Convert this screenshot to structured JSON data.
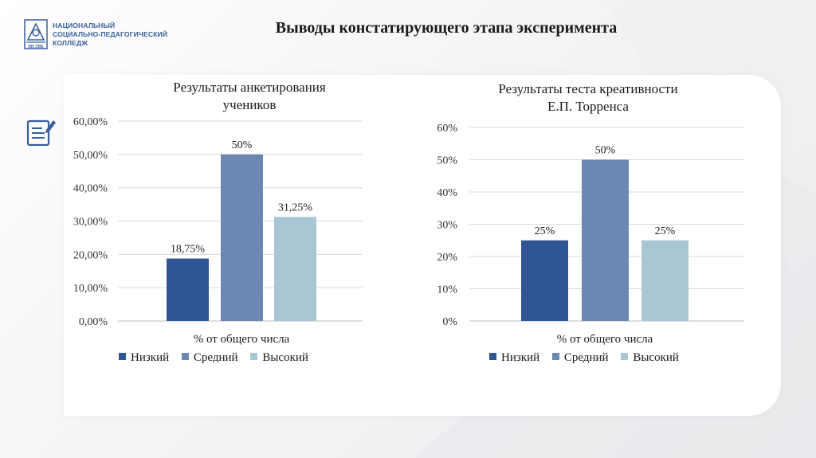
{
  "header": {
    "logo_lines": [
      "НАЦИОНАЛЬНЫЙ",
      "СОЦИАЛЬНО-ПЕДАГОГИЧЕСКИЙ",
      "КОЛЛЕДЖ"
    ],
    "logo_mark_text": "НСПК",
    "title": "Выводы констатирующего этапа эксперимента"
  },
  "colors": {
    "low": "#2f5597",
    "medium": "#6d87b3",
    "high": "#a9c6d4"
  },
  "chart_data": [
    {
      "type": "bar",
      "title": "Результаты анкетирования учеников",
      "title_lines": [
        "Результаты анкетирования",
        "учеников"
      ],
      "categories": [
        "% от общего числа"
      ],
      "series": [
        {
          "name": "Низкий",
          "values": [
            18.75
          ]
        },
        {
          "name": "Средний",
          "values": [
            50
          ]
        },
        {
          "name": "Высокий",
          "values": [
            31.25
          ]
        }
      ],
      "data_labels": [
        "18,75%",
        "50%",
        "31,25%"
      ],
      "ylim": [
        0,
        60
      ],
      "yticks": [
        "0,00%",
        "10,00%",
        "20,00%",
        "30,00%",
        "40,00%",
        "50,00%",
        "60,00%"
      ],
      "xlabel": "% от общего числа",
      "ylabel": "",
      "grid": true,
      "legend": "bottom"
    },
    {
      "type": "bar",
      "title": "Результаты теста креативности Е.П. Торренса",
      "title_lines": [
        "Результаты теста креативности",
        "Е.П. Торренса"
      ],
      "categories": [
        "% от общего числа"
      ],
      "series": [
        {
          "name": "Низкий",
          "values": [
            25
          ]
        },
        {
          "name": "Средний",
          "values": [
            50
          ]
        },
        {
          "name": "Высокий",
          "values": [
            25
          ]
        }
      ],
      "data_labels": [
        "25%",
        "50%",
        "25%"
      ],
      "ylim": [
        0,
        60
      ],
      "yticks": [
        "0%",
        "10%",
        "20%",
        "30%",
        "40%",
        "50%",
        "60%"
      ],
      "xlabel": "% от общего числа",
      "ylabel": "",
      "grid": true,
      "legend": "bottom"
    }
  ]
}
